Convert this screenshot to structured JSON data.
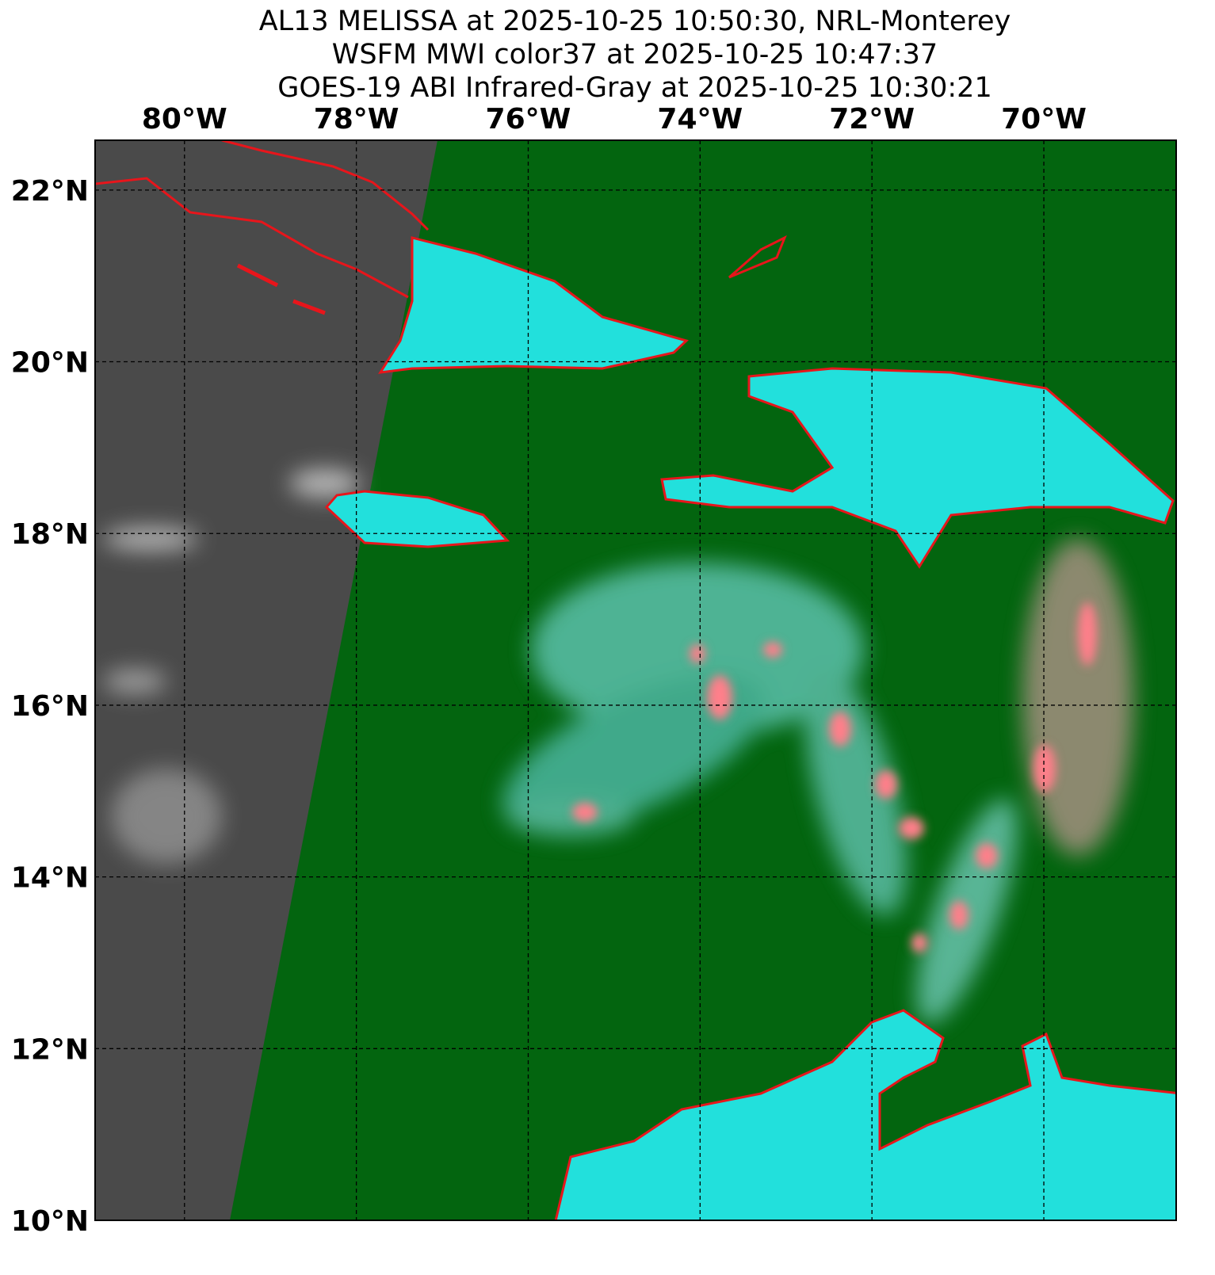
{
  "title": [
    "AL13 MELISSA at 2025-10-25 10:50:30, NRL-Monterey",
    "WSFM MWI color37 at 2025-10-25 10:47:37",
    "GOES-19 ABI Infrared-Gray at 2025-10-25 10:30:21"
  ],
  "map": {
    "xlim": [
      -81.04,
      -68.46
    ],
    "ylim": [
      10,
      22.58
    ],
    "xticks": [
      {
        "value": -80,
        "label": "80°W"
      },
      {
        "value": -78,
        "label": "78°W"
      },
      {
        "value": -76,
        "label": "76°W"
      },
      {
        "value": -74,
        "label": "74°W"
      },
      {
        "value": -72,
        "label": "72°W"
      },
      {
        "value": -70,
        "label": "70°W"
      }
    ],
    "yticks": [
      {
        "value": 10,
        "label": "10°N"
      },
      {
        "value": 12,
        "label": "12°N"
      },
      {
        "value": 14,
        "label": "14°N"
      },
      {
        "value": 16,
        "label": "16°N"
      },
      {
        "value": 18,
        "label": "18°N"
      },
      {
        "value": 20,
        "label": "20°N"
      },
      {
        "value": 22,
        "label": "22°N"
      }
    ],
    "grid": true
  }
}
